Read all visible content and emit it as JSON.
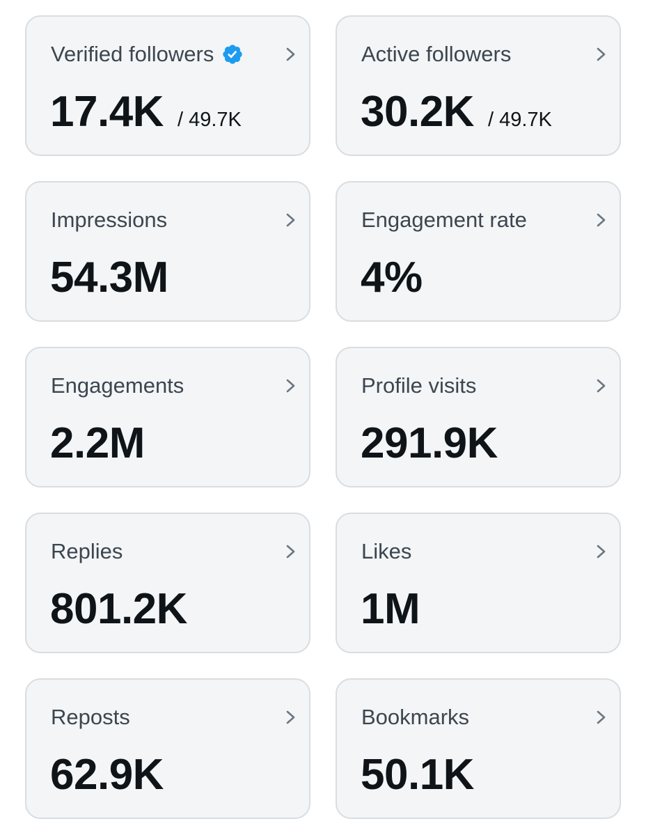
{
  "cards": [
    {
      "title": "Verified followers",
      "value": "17.4K",
      "total": "/ 49.7K",
      "icon": "verified-badge-icon"
    },
    {
      "title": "Active followers",
      "value": "30.2K",
      "total": "/ 49.7K"
    },
    {
      "title": "Impressions",
      "value": "54.3M"
    },
    {
      "title": "Engagement rate",
      "value": "4%"
    },
    {
      "title": "Engagements",
      "value": "2.2M"
    },
    {
      "title": "Profile visits",
      "value": "291.9K"
    },
    {
      "title": "Replies",
      "value": "801.2K"
    },
    {
      "title": "Likes",
      "value": "1M"
    },
    {
      "title": "Reposts",
      "value": "62.9K"
    },
    {
      "title": "Bookmarks",
      "value": "50.1K"
    }
  ],
  "colors": {
    "card_background": "#f3f5f6",
    "card_border": "#d9dde1",
    "title_text": "#3c4650",
    "value_text": "#0f1419",
    "verified_badge": "#1d9bf0",
    "chevron": "#6b7681"
  }
}
